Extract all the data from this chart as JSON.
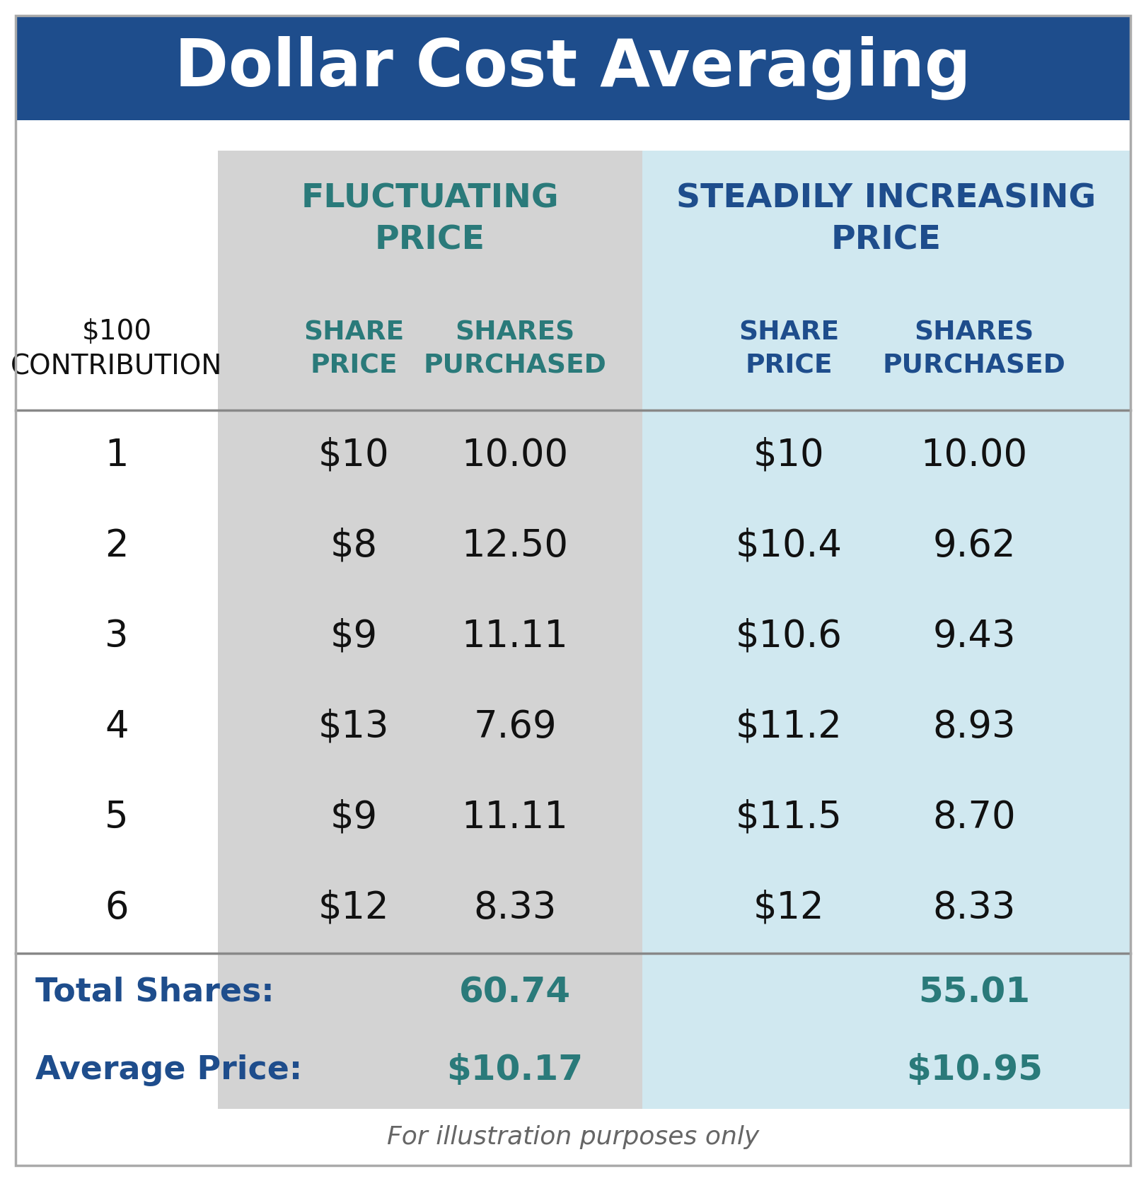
{
  "title": "Dollar Cost Averaging",
  "title_bg_color": "#1e4d8c",
  "title_text_color": "#ffffff",
  "outer_bg_color": "#ffffff",
  "fluc_col_bg": "#d3d3d3",
  "incr_col_bg": "#d0e8f0",
  "header1_fluc_text": "FLUCTUATING\nPRICE",
  "header1_incr_text": "STEADILY INCREASING\nPRICE",
  "header1_fluc_color": "#2a7a7a",
  "header1_incr_color": "#1e4d8c",
  "col0_header_text": "$100\nCONTRIBUTION",
  "col0_header_color": "#111111",
  "subheader_fluc_share": "SHARE\nPRICE",
  "subheader_fluc_purchased": "SHARES\nPURCHASED",
  "subheader_incr_share": "SHARE\nPRICE",
  "subheader_incr_purchased": "SHARES\nPURCHASED",
  "subheader_fluc_color": "#2a7a7a",
  "subheader_incr_color": "#1e4d8c",
  "rows": [
    {
      "contrib": "1",
      "fluc_price": "$10",
      "fluc_shares": "10.00",
      "incr_price": "$10",
      "incr_shares": "10.00"
    },
    {
      "contrib": "2",
      "fluc_price": "$8",
      "fluc_shares": "12.50",
      "incr_price": "$10.4",
      "incr_shares": "9.62"
    },
    {
      "contrib": "3",
      "fluc_price": "$9",
      "fluc_shares": "11.11",
      "incr_price": "$10.6",
      "incr_shares": "9.43"
    },
    {
      "contrib": "4",
      "fluc_price": "$13",
      "fluc_shares": "7.69",
      "incr_price": "$11.2",
      "incr_shares": "8.93"
    },
    {
      "contrib": "5",
      "fluc_price": "$9",
      "fluc_shares": "11.11",
      "incr_price": "$11.5",
      "incr_shares": "8.70"
    },
    {
      "contrib": "6",
      "fluc_price": "$12",
      "fluc_shares": "8.33",
      "incr_price": "$12",
      "incr_shares": "8.33"
    }
  ],
  "total_label": "Total Shares:",
  "avg_label": "Average Price:",
  "summary_label_color": "#1e4d8c",
  "fluc_total": "60.74",
  "fluc_avg": "$10.17",
  "incr_total": "55.01",
  "incr_avg": "$10.95",
  "summary_value_color": "#2a7a7a",
  "footer_text": "For illustration purposes only",
  "footer_color": "#666666",
  "row_text_color": "#111111",
  "hline_color": "#888888",
  "outer_border_color": "#aaaaaa"
}
